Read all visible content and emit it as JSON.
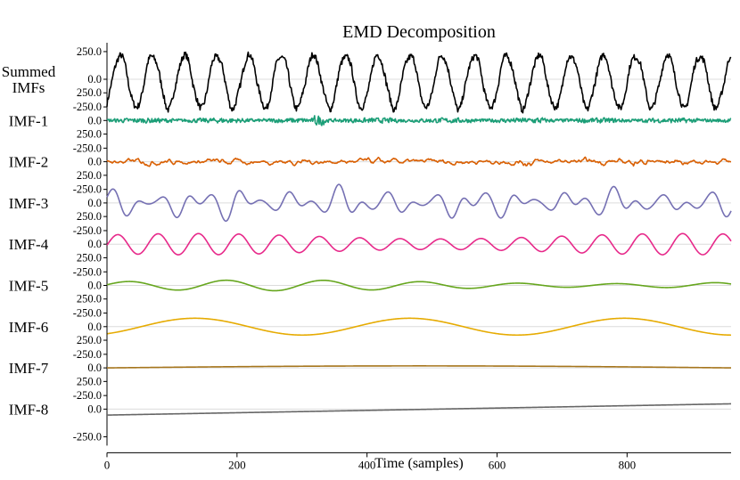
{
  "chart_data": {
    "type": "line",
    "title": "EMD Decomposition",
    "xlabel": "Time (samples)",
    "xlim": [
      0,
      960
    ],
    "x_ticks": [
      "0",
      "200",
      "400",
      "600",
      "800"
    ],
    "x_tick_values": [
      0,
      200,
      400,
      600,
      800
    ],
    "ylim": [
      -330,
      330
    ],
    "y_ticks": [
      "250.0",
      "0.0",
      "-250.0"
    ],
    "y_tick_values": [
      250,
      0,
      -250
    ],
    "n_samples": 960,
    "series": [
      {
        "name": "Summed IMFs",
        "label_lines": [
          "Summed",
          "IMFs"
        ],
        "color": "#000000",
        "amplitude": 330,
        "kind": "summed"
      },
      {
        "name": "IMF-1",
        "label_lines": [
          "IMF-1"
        ],
        "color": "#1b9e77",
        "amplitude": 80,
        "kind": "noise-fast"
      },
      {
        "name": "IMF-2",
        "label_lines": [
          "IMF-2"
        ],
        "color": "#d95f02",
        "amplitude": 110,
        "kind": "noise-mid"
      },
      {
        "name": "IMF-3",
        "label_lines": [
          "IMF-3"
        ],
        "color": "#7570b3",
        "amplitude": 300,
        "kind": "wave-fast"
      },
      {
        "name": "IMF-4",
        "label_lines": [
          "IMF-4"
        ],
        "color": "#e7298a",
        "amplitude": 200,
        "kind": "wave-mid"
      },
      {
        "name": "IMF-5",
        "label_lines": [
          "IMF-5"
        ],
        "color": "#66a61e",
        "amplitude": 80,
        "kind": "wave-slow"
      },
      {
        "name": "IMF-6",
        "label_lines": [
          "IMF-6"
        ],
        "color": "#e6ab02",
        "amplitude": 80,
        "kind": "wave-slower"
      },
      {
        "name": "IMF-7",
        "label_lines": [
          "IMF-7"
        ],
        "color": "#a6761d",
        "amplitude": 20,
        "kind": "trend-hump"
      },
      {
        "name": "IMF-8",
        "label_lines": [
          "IMF-8"
        ],
        "color": "#666666",
        "amplitude": 60,
        "kind": "trend-linear"
      }
    ]
  }
}
